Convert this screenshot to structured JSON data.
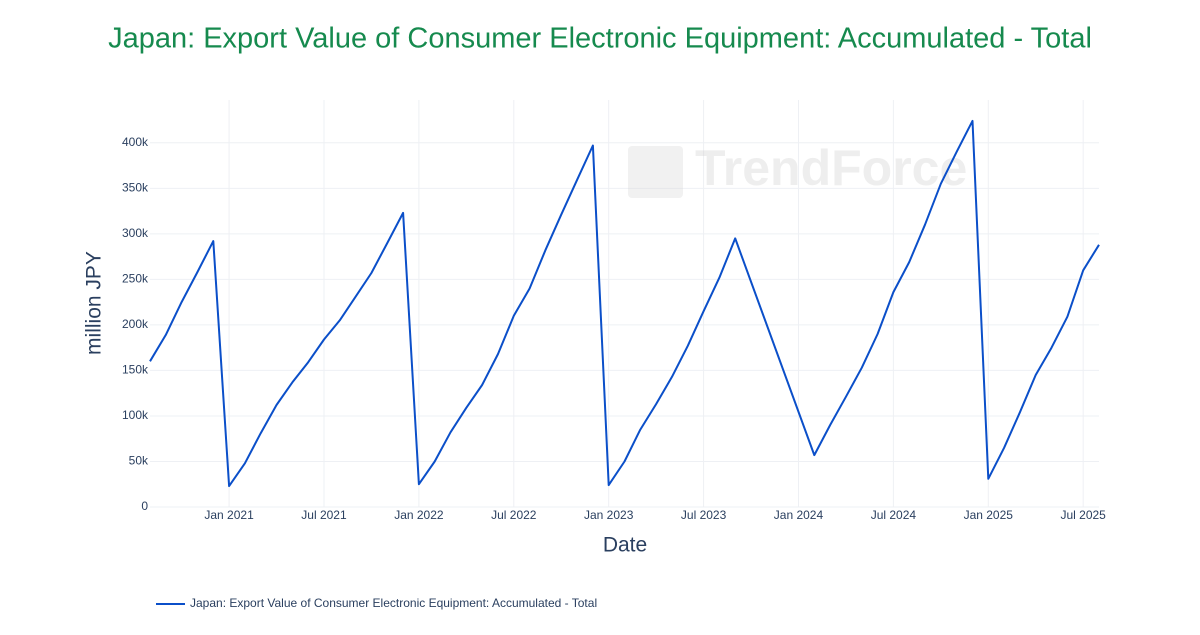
{
  "chart_data": {
    "type": "line",
    "title": "Japan: Export Value of Consumer Electronic Equipment: Accumulated - Total",
    "x_label": "Date",
    "y_label": "million JPY",
    "watermark": "TrendForce",
    "x": [
      "2020-08",
      "2020-09",
      "2020-10",
      "2020-11",
      "2020-12",
      "2021-01",
      "2021-02",
      "2021-03",
      "2021-04",
      "2021-05",
      "2021-06",
      "2021-07",
      "2021-08",
      "2021-09",
      "2021-10",
      "2021-11",
      "2021-12",
      "2022-01",
      "2022-02",
      "2022-03",
      "2022-04",
      "2022-05",
      "2022-06",
      "2022-07",
      "2022-08",
      "2022-09",
      "2022-10",
      "2022-11",
      "2022-12",
      "2023-01",
      "2023-02",
      "2023-03",
      "2023-04",
      "2023-05",
      "2023-06",
      "2023-07",
      "2023-08",
      "2023-09",
      "2024-02",
      "2024-03",
      "2024-04",
      "2024-05",
      "2024-06",
      "2024-07",
      "2024-08",
      "2024-09",
      "2024-10",
      "2024-11",
      "2024-12",
      "2025-01",
      "2025-02",
      "2025-03",
      "2025-04",
      "2025-05",
      "2025-06",
      "2025-07",
      "2025-08"
    ],
    "series": [
      {
        "name": "Japan: Export Value of Consumer Electronic Equipment: Accumulated - Total",
        "color": "#0b4fc9",
        "values": [
          160000,
          189000,
          225000,
          258000,
          292000,
          23000,
          48000,
          81000,
          112000,
          137000,
          159000,
          184000,
          205000,
          231000,
          257000,
          290000,
          323000,
          25000,
          50000,
          82000,
          109000,
          134000,
          168000,
          210000,
          240000,
          282000,
          321000,
          359000,
          397000,
          24000,
          50000,
          85000,
          113000,
          143000,
          177000,
          215000,
          252000,
          295000,
          57000,
          90000,
          121000,
          153000,
          190000,
          236000,
          269000,
          310000,
          355000,
          390000,
          424000,
          31000,
          65000,
          104000,
          145000,
          175000,
          209000,
          260000,
          288000
        ]
      }
    ],
    "xlim": [
      "2020-08",
      "2025-08"
    ],
    "xticks": [
      {
        "value": "2021-01",
        "label": "Jan 2021"
      },
      {
        "value": "2021-07",
        "label": "Jul 2021"
      },
      {
        "value": "2022-01",
        "label": "Jan 2022"
      },
      {
        "value": "2022-07",
        "label": "Jul 2022"
      },
      {
        "value": "2023-01",
        "label": "Jan 2023"
      },
      {
        "value": "2023-07",
        "label": "Jul 2023"
      },
      {
        "value": "2024-01",
        "label": "Jan 2024"
      },
      {
        "value": "2024-07",
        "label": "Jul 2024"
      },
      {
        "value": "2025-01",
        "label": "Jan 2025"
      },
      {
        "value": "2025-07",
        "label": "Jul 2025"
      }
    ],
    "ylim": [
      0,
      447000
    ],
    "yticks": [
      0,
      {
        "value": 50000,
        "label": "50k"
      },
      {
        "value": 100000,
        "label": "100k"
      },
      {
        "value": 150000,
        "label": "150k"
      },
      {
        "value": 200000,
        "label": "200k"
      },
      {
        "value": 250000,
        "label": "250k"
      },
      {
        "value": 300000,
        "label": "300k"
      },
      {
        "value": 350000,
        "label": "350k"
      },
      {
        "value": 400000,
        "label": "400k"
      }
    ],
    "grid": true
  }
}
